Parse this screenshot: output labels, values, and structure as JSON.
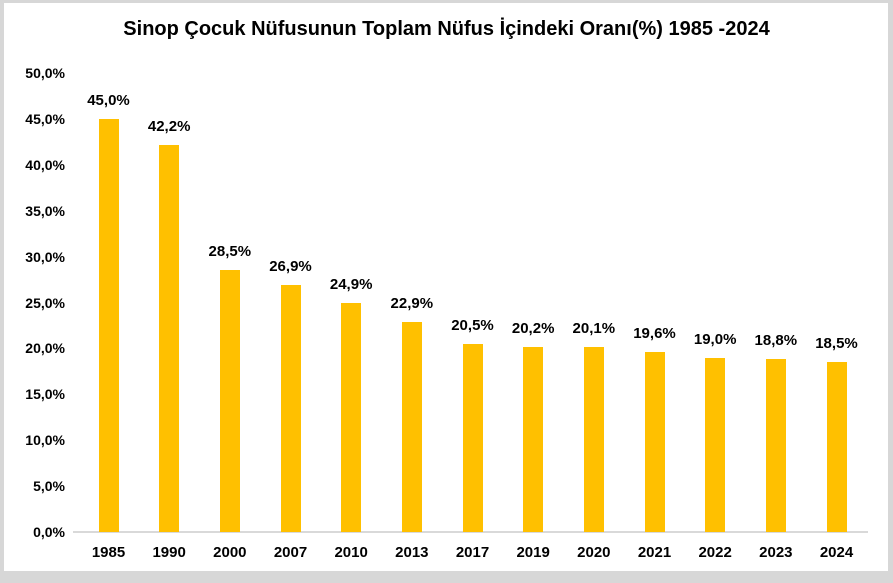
{
  "window": {
    "background": "#ffffff",
    "frame_color": "#d7d7d7"
  },
  "chart_data": {
    "type": "bar",
    "title": "Sinop Çocuk Nüfusunun Toplam Nüfus İçindeki Oranı(%) 1985 -2024",
    "categories": [
      "1985",
      "1990",
      "2000",
      "2007",
      "2010",
      "2013",
      "2017",
      "2019",
      "2020",
      "2021",
      "2022",
      "2023",
      "2024"
    ],
    "values": [
      45.0,
      42.2,
      28.5,
      26.9,
      24.9,
      22.9,
      20.5,
      20.2,
      20.1,
      19.6,
      19.0,
      18.8,
      18.5
    ],
    "value_labels": [
      "45,0%",
      "42,2%",
      "28,5%",
      "26,9%",
      "24,9%",
      "22,9%",
      "20,5%",
      "20,2%",
      "20,1%",
      "19,6%",
      "19,0%",
      "18,8%",
      "18,5%"
    ],
    "y_tick_values": [
      0,
      5,
      10,
      15,
      20,
      25,
      30,
      35,
      40,
      45,
      50
    ],
    "y_tick_labels": [
      "0,0%",
      "5,0%",
      "10,0%",
      "15,0%",
      "20,0%",
      "25,0%",
      "30,0%",
      "35,0%",
      "40,0%",
      "45,0%",
      "50,0%"
    ],
    "ylim": [
      0,
      50
    ],
    "bar_color": "#FFC000",
    "axis_line_color": "#D9D9D9",
    "text_color": "#000000",
    "grid": false,
    "legend": false
  }
}
